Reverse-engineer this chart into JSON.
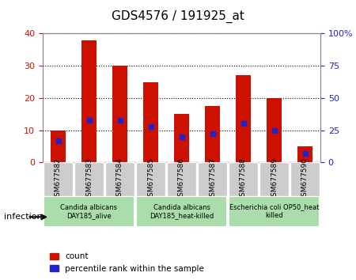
{
  "title": "GDS4576 / 191925_at",
  "samples": [
    "GSM677582",
    "GSM677583",
    "GSM677584",
    "GSM677585",
    "GSM677586",
    "GSM677587",
    "GSM677588",
    "GSM677589",
    "GSM677590"
  ],
  "counts": [
    10,
    38,
    30,
    25,
    15,
    17.5,
    27,
    20,
    5
  ],
  "percentile_ranks": [
    17,
    33,
    33,
    28,
    20,
    22,
    30,
    25,
    7
  ],
  "ylim_left": [
    0,
    40
  ],
  "ylim_right": [
    0,
    100
  ],
  "yticks_left": [
    0,
    10,
    20,
    30,
    40
  ],
  "yticks_right": [
    0,
    25,
    50,
    75,
    100
  ],
  "ytick_labels_right": [
    "0",
    "25",
    "50",
    "75",
    "100%"
  ],
  "bar_color": "#cc1100",
  "dot_color": "#2222cc",
  "grid_color": "#000000",
  "xlabel": "",
  "groups": [
    {
      "label": "Candida albicans\nDAY185_alive",
      "start": 0,
      "end": 3,
      "color": "#aaddaa"
    },
    {
      "label": "Candida albicans\nDAY185_heat-killed",
      "start": 3,
      "end": 6,
      "color": "#aaddaa"
    },
    {
      "label": "Escherichia coli OP50_heat\nkilled",
      "start": 6,
      "end": 9,
      "color": "#aaddaa"
    }
  ],
  "infection_label": "infection",
  "legend_count_label": "count",
  "legend_percentile_label": "percentile rank within the sample",
  "tick_label_color_left": "#cc1100",
  "tick_label_color_right": "#2222cc",
  "bar_width": 0.5,
  "sample_label_bg": "#cccccc"
}
